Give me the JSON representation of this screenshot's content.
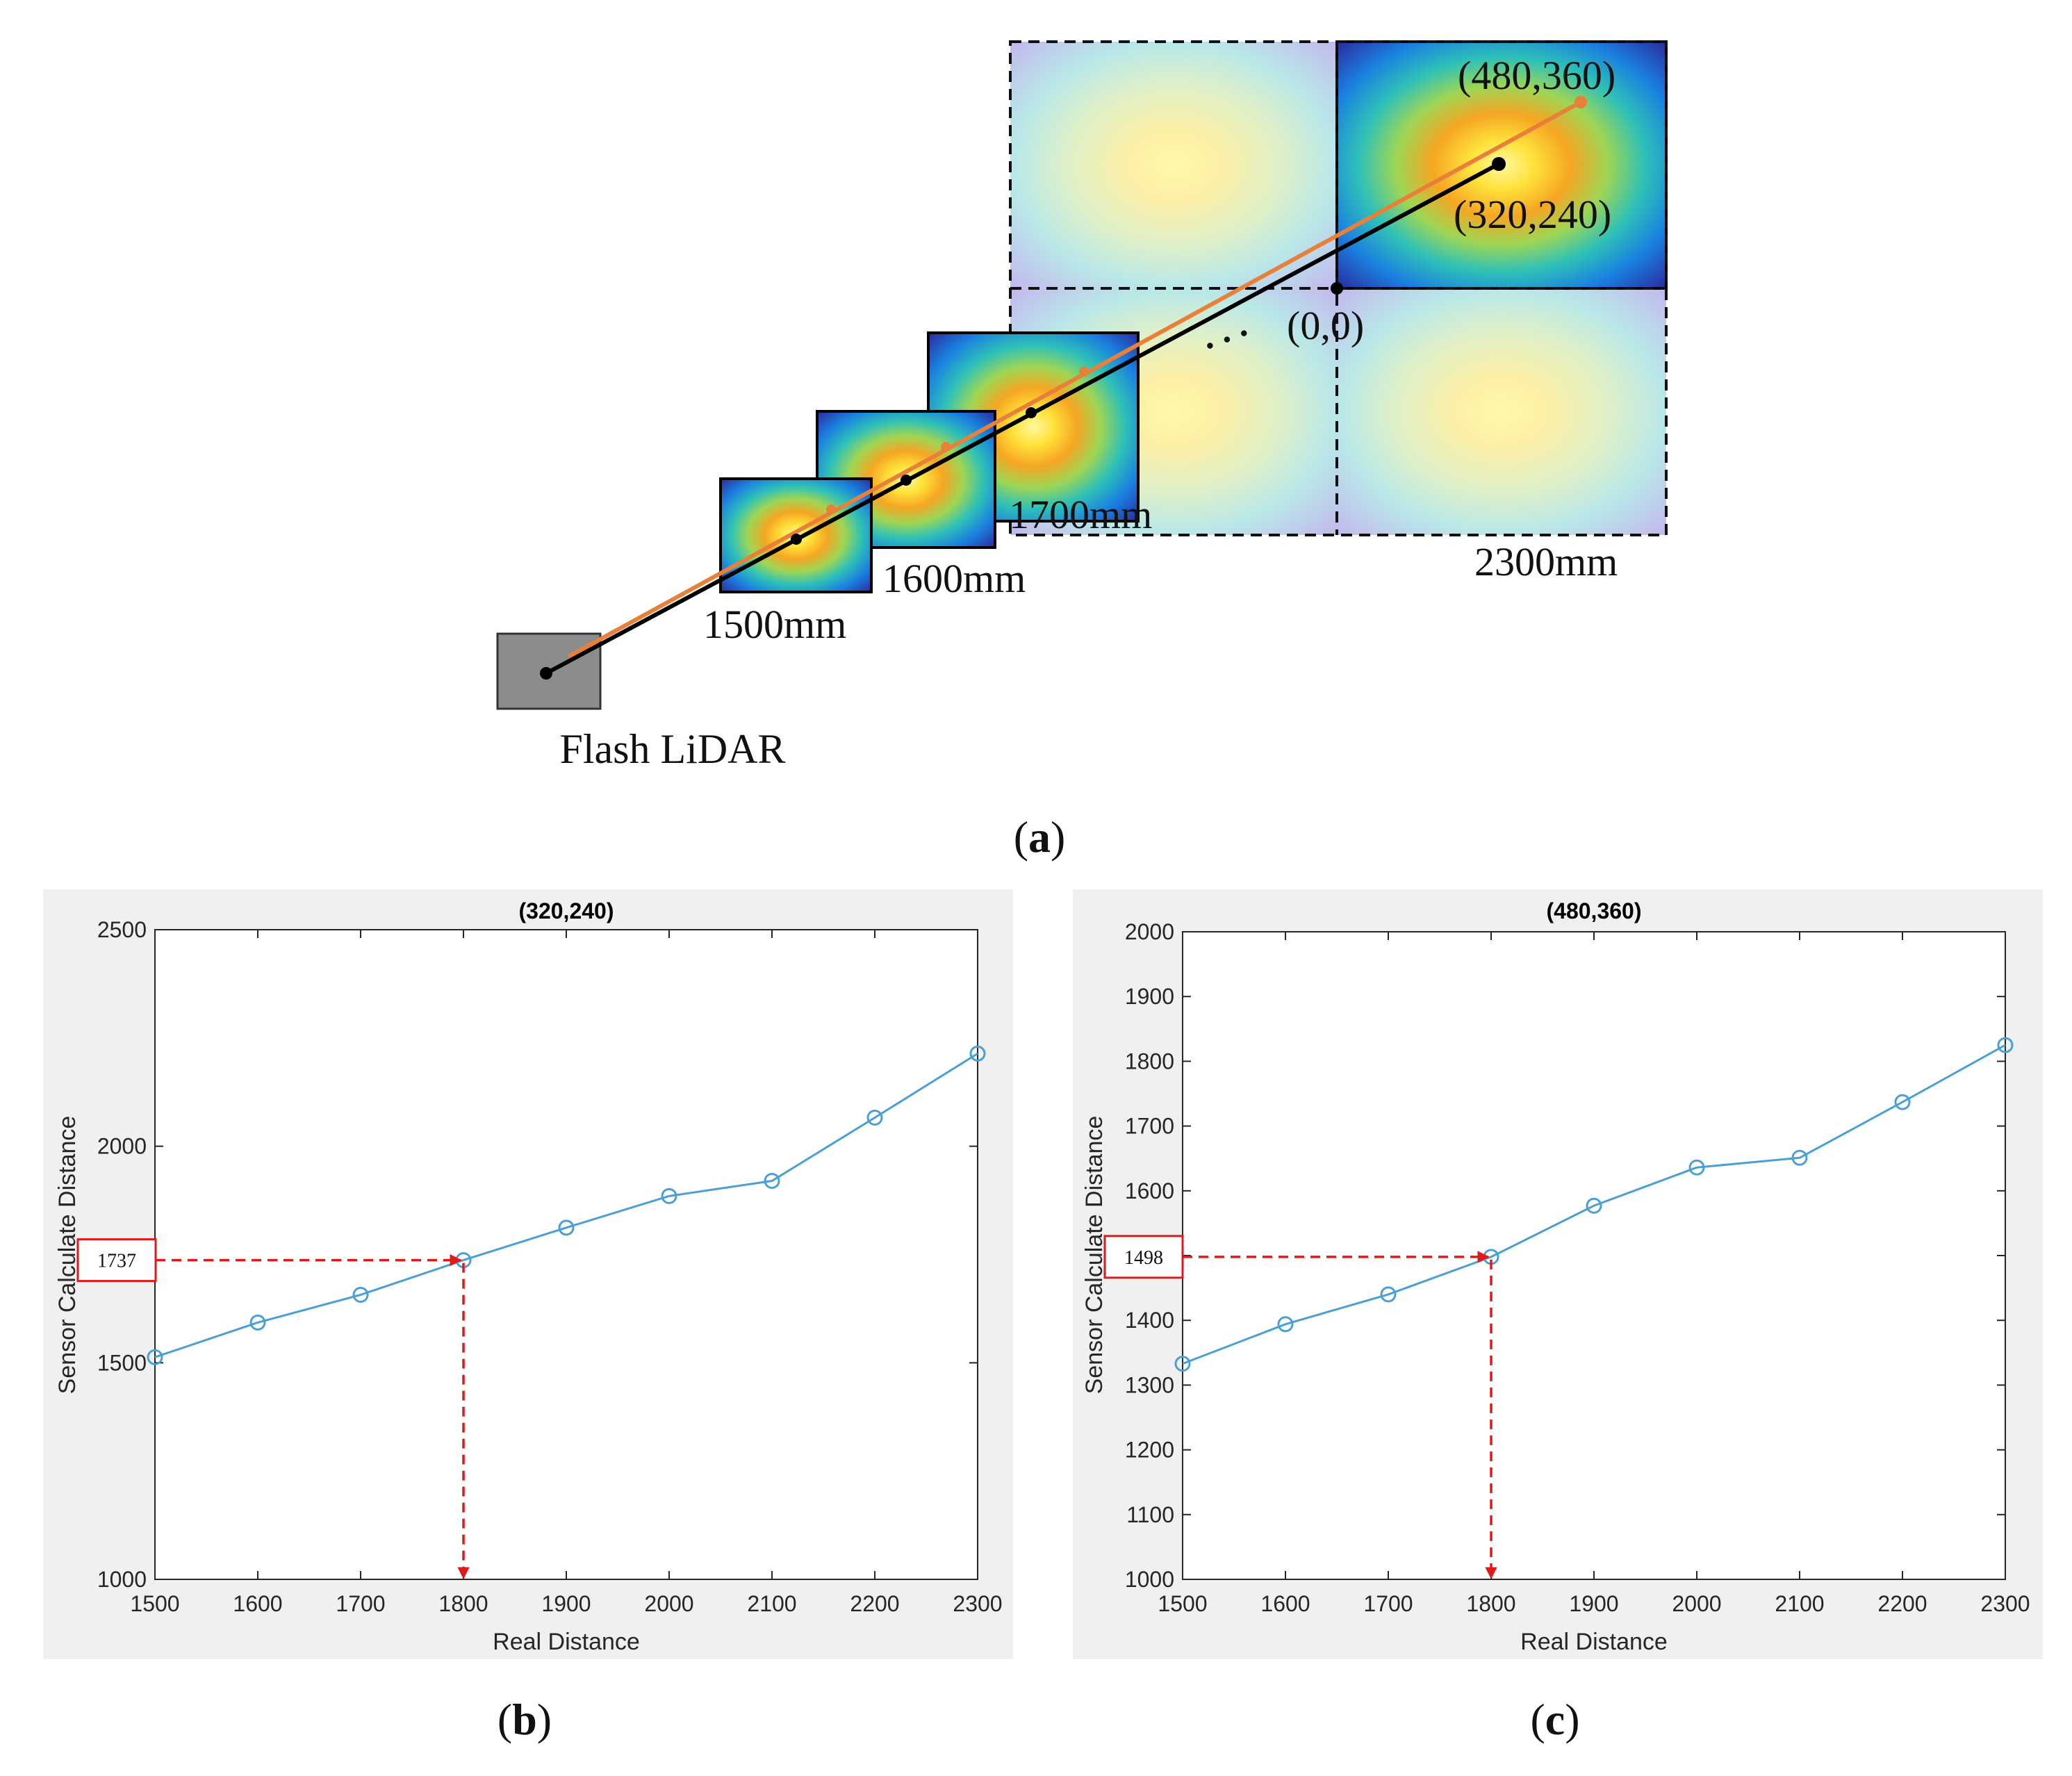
{
  "diagram": {
    "sensor_label": "Flash LiDAR",
    "distance_labels": [
      "1500mm",
      "1600mm",
      "1700mm",
      "2300mm"
    ],
    "coord_top_right": "(480,360)",
    "coord_center": "(320,240)",
    "coord_origin": "(0,0)",
    "ellipsis": ". . .",
    "ray_colors": {
      "black": "#000000",
      "orange": "#e8803a"
    }
  },
  "captions": {
    "a": "a",
    "b": "b",
    "c": "c"
  },
  "chart_data": [
    {
      "id": "b",
      "type": "line",
      "title": "(320,240)",
      "xlabel": "Real Distance",
      "ylabel": "Sensor Calculate Distance",
      "x": [
        1500,
        1600,
        1700,
        1800,
        1900,
        2000,
        2100,
        2200,
        2300
      ],
      "y": [
        1513,
        1593,
        1657,
        1737,
        1812,
        1885,
        1920,
        2066,
        2214
      ],
      "xlim": [
        1500,
        2300
      ],
      "ylim": [
        1000,
        2500
      ],
      "xticks": [
        1500,
        1600,
        1700,
        1800,
        1900,
        2000,
        2100,
        2200,
        2300
      ],
      "yticks": [
        1000,
        1500,
        2000,
        2500
      ],
      "annotation": {
        "x": 1800,
        "y": 1737,
        "label": "1737"
      },
      "line_color": "#4a9fd4",
      "annotation_color": "#e0191b"
    },
    {
      "id": "c",
      "type": "line",
      "title": "(480,360)",
      "xlabel": "Real Distance",
      "ylabel": "Sensor Calculate Distance",
      "x": [
        1500,
        1600,
        1700,
        1800,
        1900,
        2000,
        2100,
        2200,
        2300
      ],
      "y": [
        1333,
        1394,
        1440,
        1498,
        1577,
        1636,
        1651,
        1737,
        1825
      ],
      "xlim": [
        1500,
        2300
      ],
      "ylim": [
        1000,
        2000
      ],
      "xticks": [
        1500,
        1600,
        1700,
        1800,
        1900,
        2000,
        2100,
        2200,
        2300
      ],
      "yticks": [
        1000,
        1100,
        1200,
        1300,
        1400,
        1500,
        1600,
        1700,
        1800,
        1900,
        2000
      ],
      "annotation": {
        "x": 1800,
        "y": 1498,
        "label": "1498"
      },
      "line_color": "#4a9fd4",
      "annotation_color": "#e0191b"
    }
  ]
}
